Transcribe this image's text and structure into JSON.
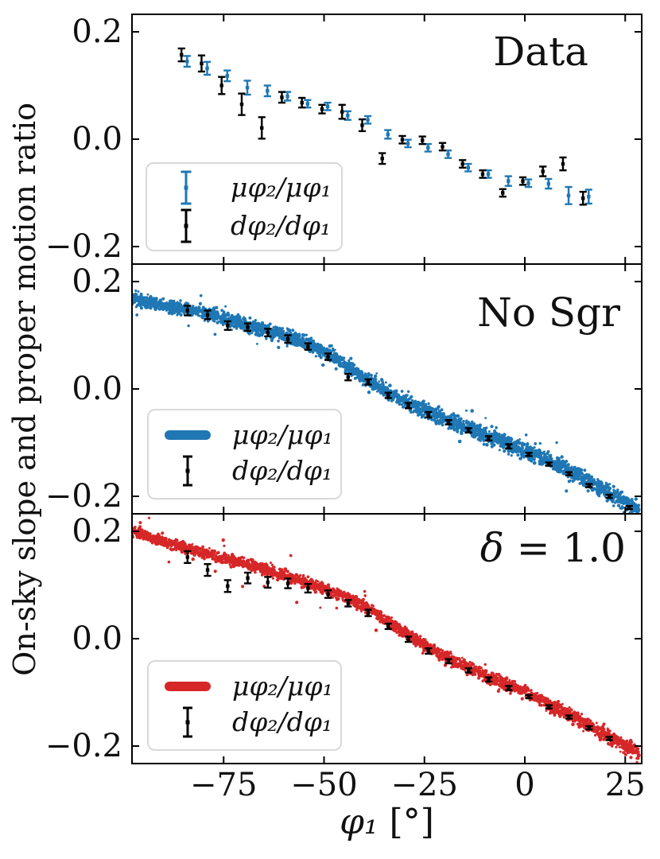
{
  "figure": {
    "ylabel": "On-sky slope and proper motion ratio",
    "xlabel": "φ₁ [°]",
    "xlabel_phi": "φ₁",
    "xlabel_unit": " [°]",
    "colors": {
      "blue": "#1f77b4",
      "red": "#d62728",
      "black": "#000000",
      "legend_border": "#d9d9d9",
      "background": "#ffffff"
    },
    "x_ticks": [
      -75,
      -50,
      -25,
      0,
      25
    ],
    "x_tick_labels": [
      "−75",
      "−50",
      "−25",
      "0",
      "25"
    ],
    "y_ticks": [
      0.2,
      0.0,
      -0.2
    ],
    "y_tick_labels": [
      "0.2",
      "0.0",
      "−0.2"
    ],
    "xlim": [
      -97.8,
      29.1
    ],
    "ylim": [
      -0.233,
      0.233
    ],
    "grid": false,
    "tick_direction": "in"
  },
  "chart_data": {
    "type": "scatter",
    "layout": "three stacked panels, shared x axis",
    "panels": [
      {
        "label": "Data",
        "label_italic": "",
        "label_plain": "Data",
        "legend": [
          {
            "symbol": "errorbar-blue-icon",
            "label": "μφ₂/μφ₁"
          },
          {
            "symbol": "errorbar-black-icon",
            "label": "dφ₂/dφ₁"
          }
        ],
        "series": [
          {
            "name": "mu_phi2_over_mu_phi1",
            "type": "errorbar",
            "color": "#1f77b4",
            "x_offset": 0.9,
            "x": [
              -85,
              -80,
              -75,
              -70,
              -65,
              -60,
              -55,
              -50,
              -45,
              -40,
              -35,
              -30,
              -25,
              -20,
              -15,
              -10,
              -5,
              0,
              5,
              10,
              15
            ],
            "y": [
              0.145,
              0.132,
              0.118,
              0.096,
              0.09,
              0.08,
              0.066,
              0.061,
              0.044,
              0.036,
              0.009,
              -0.008,
              -0.016,
              -0.028,
              -0.053,
              -0.065,
              -0.078,
              -0.082,
              -0.083,
              -0.105,
              -0.107
            ],
            "yerr": [
              0.01,
              0.012,
              0.01,
              0.013,
              0.01,
              0.008,
              0.007,
              0.007,
              0.008,
              0.007,
              0.008,
              0.007,
              0.007,
              0.007,
              0.007,
              0.007,
              0.009,
              0.007,
              0.009,
              0.016,
              0.013
            ]
          },
          {
            "name": "dphi2_over_dphi1",
            "type": "errorbar",
            "color": "#000000",
            "x_offset": -0.5,
            "x": [
              -85,
              -80,
              -75,
              -70,
              -65,
              -60,
              -55,
              -50,
              -45,
              -40,
              -35,
              -30,
              -25,
              -20,
              -15,
              -10,
              -5,
              0,
              5,
              10,
              15
            ],
            "y": [
              0.157,
              0.141,
              0.1,
              0.065,
              0.021,
              0.078,
              0.068,
              0.056,
              0.051,
              0.026,
              -0.036,
              -0.001,
              -0.002,
              -0.014,
              -0.046,
              -0.065,
              -0.1,
              -0.078,
              -0.06,
              -0.046,
              -0.11
            ],
            "yerr": [
              0.012,
              0.015,
              0.016,
              0.02,
              0.02,
              0.01,
              0.009,
              0.008,
              0.013,
              0.011,
              0.01,
              0.007,
              0.007,
              0.007,
              0.007,
              0.007,
              0.007,
              0.007,
              0.009,
              0.012,
              0.012
            ]
          }
        ]
      },
      {
        "label": "No Sgr",
        "label_italic": "",
        "label_plain": "No Sgr",
        "legend": [
          {
            "symbol": "swatch-blue-icon",
            "label": "μφ₂/μφ₁"
          },
          {
            "symbol": "errorbar-black-icon",
            "label": "dφ₂/dφ₁"
          }
        ],
        "series": [
          {
            "name": "mu_phi2_over_mu_phi1",
            "type": "stream",
            "color": "#1f77b4",
            "n_points": 3000,
            "sigma": 0.0056,
            "outlier_prob": 0.012,
            "anchors": [
              [
                -98.5,
                0.168
              ],
              [
                -90,
                0.156
              ],
              [
                -80,
                0.142
              ],
              [
                -70,
                0.12
              ],
              [
                -60,
                0.1
              ],
              [
                -50,
                0.072
              ],
              [
                -40,
                0.02
              ],
              [
                -35,
                -0.002
              ],
              [
                -30,
                -0.022
              ],
              [
                -25,
                -0.04
              ],
              [
                -20,
                -0.055
              ],
              [
                -15,
                -0.07
              ],
              [
                -10,
                -0.085
              ],
              [
                -5,
                -0.1
              ],
              [
                0,
                -0.115
              ],
              [
                5,
                -0.13
              ],
              [
                10,
                -0.148
              ],
              [
                15,
                -0.168
              ],
              [
                20,
                -0.19
              ],
              [
                25,
                -0.21
              ],
              [
                28.5,
                -0.225
              ]
            ]
          },
          {
            "name": "dphi2_over_dphi1",
            "type": "errorbar",
            "color": "#000000",
            "x_offset": 0,
            "x": [
              -84,
              -79,
              -74,
              -69,
              -64,
              -59,
              -54,
              -49,
              -44,
              -39,
              -34,
              -29,
              -24,
              -19,
              -14,
              -9,
              -4,
              1,
              6,
              11,
              16,
              21,
              26
            ],
            "y": [
              0.146,
              0.138,
              0.118,
              0.115,
              0.105,
              0.093,
              0.079,
              0.06,
              0.022,
              0.013,
              -0.012,
              -0.031,
              -0.048,
              -0.062,
              -0.077,
              -0.092,
              -0.107,
              -0.122,
              -0.14,
              -0.158,
              -0.18,
              -0.2,
              -0.221
            ],
            "yerr": [
              0.009,
              0.008,
              0.008,
              0.007,
              0.007,
              0.007,
              0.006,
              0.006,
              0.006,
              0.005,
              0.005,
              0.005,
              0.005,
              0.004,
              0.004,
              0.004,
              0.004,
              0.003,
              0.003,
              0.003,
              0.003,
              0.003,
              0.003
            ]
          }
        ]
      },
      {
        "label": "δ = 1.0",
        "label_italic": "δ",
        "label_plain": " = 1.0",
        "legend": [
          {
            "symbol": "swatch-red-icon",
            "label": "μφ₂/μφ₁"
          },
          {
            "symbol": "errorbar-black-icon",
            "label": "dφ₂/dφ₁"
          }
        ],
        "series": [
          {
            "name": "mu_phi2_over_mu_phi1",
            "type": "stream",
            "color": "#d62728",
            "n_points": 2700,
            "sigma": 0.0046,
            "outlier_prob": 0.006,
            "anchors": [
              [
                -98.5,
                0.202
              ],
              [
                -90,
                0.18
              ],
              [
                -80,
                0.16
              ],
              [
                -70,
                0.14
              ],
              [
                -60,
                0.118
              ],
              [
                -50,
                0.094
              ],
              [
                -40,
                0.062
              ],
              [
                -30,
                0.012
              ],
              [
                -25,
                -0.012
              ],
              [
                -20,
                -0.033
              ],
              [
                -15,
                -0.05
              ],
              [
                -10,
                -0.068
              ],
              [
                -5,
                -0.085
              ],
              [
                0,
                -0.1
              ],
              [
                5,
                -0.118
              ],
              [
                10,
                -0.138
              ],
              [
                15,
                -0.158
              ],
              [
                20,
                -0.178
              ],
              [
                25,
                -0.198
              ],
              [
                28.5,
                -0.214
              ]
            ]
          },
          {
            "name": "dphi2_over_dphi1",
            "type": "errorbar",
            "color": "#000000",
            "x_offset": 0,
            "x": [
              -84,
              -79,
              -74,
              -69,
              -64,
              -59,
              -54,
              -49,
              -44,
              -39,
              -34,
              -29,
              -24,
              -19,
              -14,
              -9,
              -4,
              1,
              6,
              11,
              16,
              21
            ],
            "y": [
              0.152,
              0.128,
              0.098,
              0.113,
              0.105,
              0.103,
              0.094,
              0.083,
              0.066,
              0.048,
              0.023,
              -0.001,
              -0.023,
              -0.042,
              -0.059,
              -0.076,
              -0.092,
              -0.108,
              -0.127,
              -0.146,
              -0.166,
              -0.186
            ],
            "yerr": [
              0.011,
              0.011,
              0.011,
              0.01,
              0.01,
              0.009,
              0.008,
              0.007,
              0.006,
              0.006,
              0.005,
              0.005,
              0.005,
              0.004,
              0.004,
              0.004,
              0.004,
              0.003,
              0.003,
              0.003,
              0.003,
              0.003
            ]
          }
        ]
      }
    ]
  }
}
